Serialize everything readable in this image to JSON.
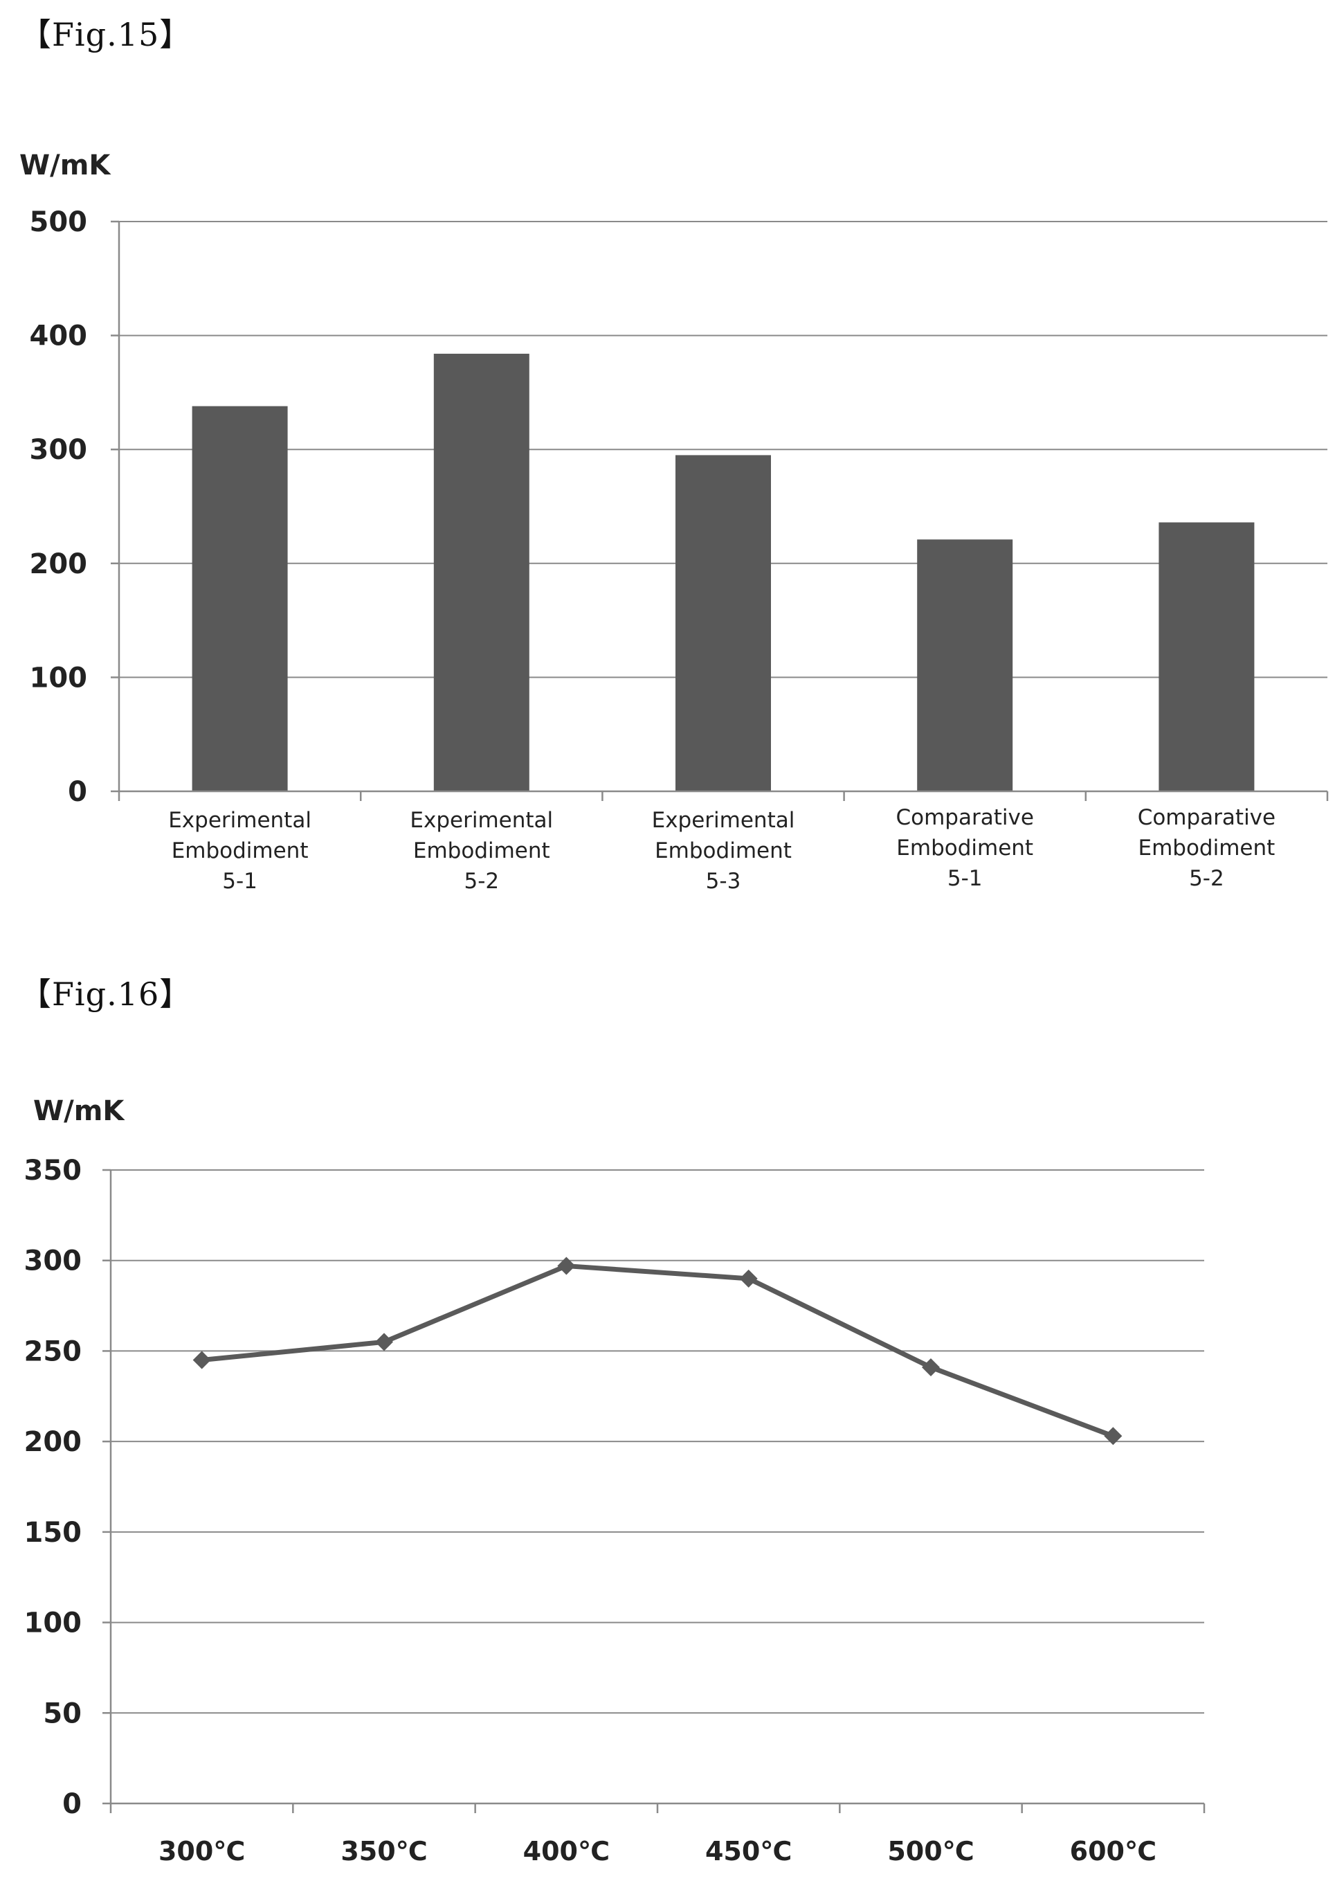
{
  "figures": [
    {
      "label": "【Fig.15】"
    },
    {
      "label": "【Fig.16】"
    }
  ],
  "chart_data": [
    {
      "type": "bar",
      "title": "",
      "ylabel": "W/mK",
      "xlabel": "",
      "ylim": [
        0,
        500
      ],
      "yticks": [
        0,
        100,
        200,
        300,
        400,
        500
      ],
      "grid": true,
      "categories": [
        [
          "Experimental",
          "Embodiment",
          "5-1"
        ],
        [
          "Experimental",
          "Embodiment",
          "5-2"
        ],
        [
          "Experimental",
          "Embodiment",
          "5-3"
        ],
        [
          "Comparative",
          "Embodiment",
          "5-1"
        ],
        [
          "Comparative",
          "Embodiment",
          "5-2"
        ]
      ],
      "values": [
        338,
        384,
        295,
        221,
        236
      ],
      "bar_color": "#595959"
    },
    {
      "type": "line",
      "title": "",
      "ylabel": "W/mK",
      "xlabel": "",
      "ylim": [
        0,
        350
      ],
      "yticks": [
        0,
        50,
        100,
        150,
        200,
        250,
        300,
        350
      ],
      "grid": true,
      "categories": [
        "300℃",
        "350℃",
        "400℃",
        "450℃",
        "500℃",
        "600℃"
      ],
      "values": [
        245,
        255,
        297,
        290,
        241,
        203
      ],
      "line_color": "#5a5a5a",
      "marker": "diamond"
    }
  ]
}
